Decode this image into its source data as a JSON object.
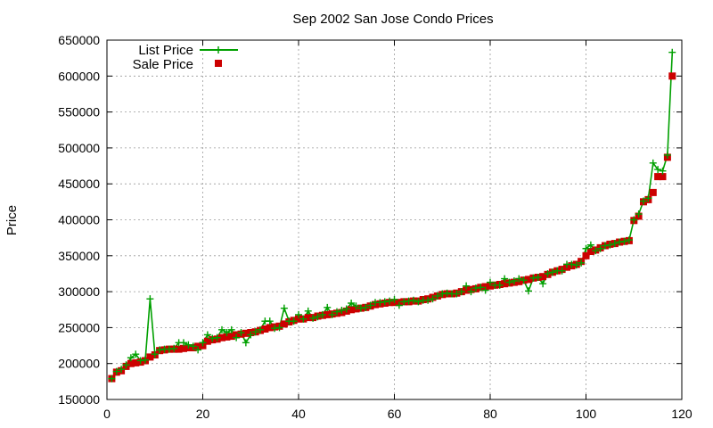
{
  "chart_data": {
    "type": "line",
    "title": "Sep 2002 San Jose Condo Prices",
    "xlabel": "",
    "ylabel": "Price",
    "xlim": [
      0,
      120
    ],
    "ylim": [
      150000,
      650000
    ],
    "xticks": [
      0,
      20,
      40,
      60,
      80,
      100,
      120
    ],
    "yticks": [
      150000,
      200000,
      250000,
      300000,
      350000,
      400000,
      450000,
      500000,
      550000,
      600000,
      650000
    ],
    "grid": true,
    "legend_position": "top-left",
    "series": [
      {
        "name": "List Price",
        "style": "line+cross",
        "color": "#00a000",
        "points": [
          [
            1,
            179000
          ],
          [
            2,
            189000
          ],
          [
            3,
            192000
          ],
          [
            4,
            198000
          ],
          [
            5,
            208000
          ],
          [
            6,
            213000
          ],
          [
            7,
            204000
          ],
          [
            8,
            205000
          ],
          [
            9,
            290000
          ],
          [
            10,
            213000
          ],
          [
            11,
            219000
          ],
          [
            12,
            220000
          ],
          [
            13,
            220000
          ],
          [
            14,
            221000
          ],
          [
            15,
            229000
          ],
          [
            16,
            229000
          ],
          [
            17,
            226000
          ],
          [
            18,
            224000
          ],
          [
            19,
            219000
          ],
          [
            20,
            229000
          ],
          [
            21,
            240000
          ],
          [
            22,
            235000
          ],
          [
            23,
            236000
          ],
          [
            24,
            247000
          ],
          [
            25,
            243000
          ],
          [
            26,
            247000
          ],
          [
            27,
            236000
          ],
          [
            28,
            243000
          ],
          [
            29,
            229000
          ],
          [
            30,
            240000
          ],
          [
            31,
            244000
          ],
          [
            32,
            247000
          ],
          [
            33,
            259000
          ],
          [
            34,
            259000
          ],
          [
            35,
            249000
          ],
          [
            36,
            250000
          ],
          [
            37,
            277000
          ],
          [
            38,
            259000
          ],
          [
            39,
            259000
          ],
          [
            40,
            268000
          ],
          [
            41,
            262000
          ],
          [
            42,
            273000
          ],
          [
            43,
            263000
          ],
          [
            44,
            265000
          ],
          [
            45,
            268000
          ],
          [
            46,
            278000
          ],
          [
            47,
            268000
          ],
          [
            48,
            272000
          ],
          [
            49,
            274000
          ],
          [
            50,
            276000
          ],
          [
            51,
            284000
          ],
          [
            52,
            280000
          ],
          [
            53,
            277000
          ],
          [
            54,
            278000
          ],
          [
            55,
            281000
          ],
          [
            56,
            285000
          ],
          [
            57,
            285000
          ],
          [
            58,
            286000
          ],
          [
            59,
            287000
          ],
          [
            60,
            289000
          ],
          [
            61,
            281000
          ],
          [
            62,
            286000
          ],
          [
            63,
            287000
          ],
          [
            64,
            288000
          ],
          [
            65,
            286000
          ],
          [
            66,
            288000
          ],
          [
            67,
            288000
          ],
          [
            68,
            290000
          ],
          [
            69,
            294000
          ],
          [
            70,
            297000
          ],
          [
            71,
            298000
          ],
          [
            72,
            297000
          ],
          [
            73,
            297000
          ],
          [
            74,
            300000
          ],
          [
            75,
            308000
          ],
          [
            76,
            300000
          ],
          [
            77,
            305000
          ],
          [
            78,
            306000
          ],
          [
            79,
            302000
          ],
          [
            80,
            313000
          ],
          [
            81,
            309000
          ],
          [
            82,
            309000
          ],
          [
            83,
            318000
          ],
          [
            84,
            313000
          ],
          [
            85,
            315000
          ],
          [
            86,
            318000
          ],
          [
            87,
            316000
          ],
          [
            88,
            301000
          ],
          [
            89,
            319000
          ],
          [
            90,
            320000
          ],
          [
            91,
            311000
          ],
          [
            92,
            325000
          ],
          [
            93,
            327000
          ],
          [
            94,
            329000
          ],
          [
            95,
            329000
          ],
          [
            96,
            338000
          ],
          [
            97,
            338000
          ],
          [
            98,
            337000
          ],
          [
            99,
            340000
          ],
          [
            100,
            360000
          ],
          [
            101,
            365000
          ],
          [
            102,
            357000
          ],
          [
            103,
            360000
          ],
          [
            104,
            364000
          ],
          [
            105,
            365000
          ],
          [
            106,
            367000
          ],
          [
            107,
            369000
          ],
          [
            108,
            370000
          ],
          [
            109,
            372000
          ],
          [
            110,
            400000
          ],
          [
            111,
            408000
          ],
          [
            112,
            426000
          ],
          [
            113,
            430000
          ],
          [
            114,
            479000
          ],
          [
            115,
            470000
          ],
          [
            116,
            468000
          ],
          [
            117,
            490000
          ],
          [
            118,
            633000
          ]
        ]
      },
      {
        "name": "Sale Price",
        "style": "square",
        "color": "#cc0000",
        "points": [
          [
            1,
            179000
          ],
          [
            2,
            188000
          ],
          [
            3,
            190000
          ],
          [
            4,
            196000
          ],
          [
            5,
            200000
          ],
          [
            6,
            201000
          ],
          [
            7,
            202000
          ],
          [
            8,
            204000
          ],
          [
            9,
            209000
          ],
          [
            10,
            212000
          ],
          [
            11,
            218000
          ],
          [
            12,
            219000
          ],
          [
            13,
            220000
          ],
          [
            14,
            220000
          ],
          [
            15,
            220000
          ],
          [
            16,
            221000
          ],
          [
            17,
            222000
          ],
          [
            18,
            222000
          ],
          [
            19,
            224000
          ],
          [
            20,
            225000
          ],
          [
            21,
            231000
          ],
          [
            22,
            233000
          ],
          [
            23,
            234000
          ],
          [
            24,
            236000
          ],
          [
            25,
            237000
          ],
          [
            26,
            238000
          ],
          [
            27,
            240000
          ],
          [
            28,
            241000
          ],
          [
            29,
            242000
          ],
          [
            30,
            243000
          ],
          [
            31,
            244000
          ],
          [
            32,
            246000
          ],
          [
            33,
            248000
          ],
          [
            34,
            250000
          ],
          [
            35,
            251000
          ],
          [
            36,
            252000
          ],
          [
            37,
            255000
          ],
          [
            38,
            258000
          ],
          [
            39,
            260000
          ],
          [
            40,
            262000
          ],
          [
            41,
            262000
          ],
          [
            42,
            264000
          ],
          [
            43,
            264000
          ],
          [
            44,
            266000
          ],
          [
            45,
            267000
          ],
          [
            46,
            268000
          ],
          [
            47,
            269000
          ],
          [
            48,
            270000
          ],
          [
            49,
            271000
          ],
          [
            50,
            273000
          ],
          [
            51,
            275000
          ],
          [
            52,
            276000
          ],
          [
            53,
            277000
          ],
          [
            54,
            278000
          ],
          [
            55,
            280000
          ],
          [
            56,
            282000
          ],
          [
            57,
            283000
          ],
          [
            58,
            284000
          ],
          [
            59,
            285000
          ],
          [
            60,
            285000
          ],
          [
            61,
            285000
          ],
          [
            62,
            286000
          ],
          [
            63,
            286000
          ],
          [
            64,
            287000
          ],
          [
            65,
            287000
          ],
          [
            66,
            289000
          ],
          [
            67,
            290000
          ],
          [
            68,
            292000
          ],
          [
            69,
            294000
          ],
          [
            70,
            296000
          ],
          [
            71,
            297000
          ],
          [
            72,
            297000
          ],
          [
            73,
            298000
          ],
          [
            74,
            300000
          ],
          [
            75,
            302000
          ],
          [
            76,
            303000
          ],
          [
            77,
            304000
          ],
          [
            78,
            306000
          ],
          [
            79,
            307000
          ],
          [
            80,
            308000
          ],
          [
            81,
            309000
          ],
          [
            82,
            310000
          ],
          [
            83,
            311000
          ],
          [
            84,
            312000
          ],
          [
            85,
            313000
          ],
          [
            86,
            314000
          ],
          [
            87,
            316000
          ],
          [
            88,
            317000
          ],
          [
            89,
            319000
          ],
          [
            90,
            320000
          ],
          [
            91,
            321000
          ],
          [
            92,
            324000
          ],
          [
            93,
            327000
          ],
          [
            94,
            329000
          ],
          [
            95,
            331000
          ],
          [
            96,
            334000
          ],
          [
            97,
            336000
          ],
          [
            98,
            338000
          ],
          [
            99,
            342000
          ],
          [
            100,
            350000
          ],
          [
            101,
            356000
          ],
          [
            102,
            358000
          ],
          [
            103,
            361000
          ],
          [
            104,
            364000
          ],
          [
            105,
            366000
          ],
          [
            106,
            367000
          ],
          [
            107,
            369000
          ],
          [
            108,
            370000
          ],
          [
            109,
            371000
          ],
          [
            110,
            399000
          ],
          [
            111,
            405000
          ],
          [
            112,
            425000
          ],
          [
            113,
            428000
          ],
          [
            114,
            438000
          ],
          [
            115,
            460000
          ],
          [
            116,
            460000
          ],
          [
            117,
            487000
          ],
          [
            118,
            600000
          ]
        ]
      }
    ]
  }
}
